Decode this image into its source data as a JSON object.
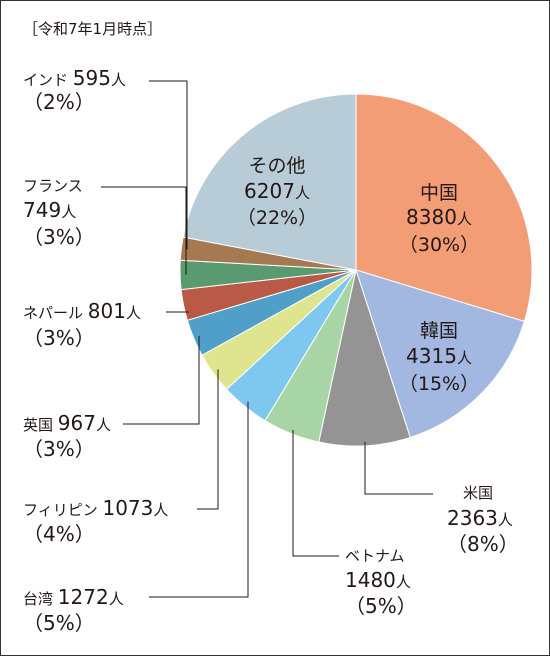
{
  "chart_data": {
    "type": "pie",
    "note": "［令和7年1月時点］",
    "unit": "人",
    "slices": [
      {
        "name": "中国",
        "value": 8380,
        "percent_label": "（30%）",
        "color": "#f29d76"
      },
      {
        "name": "韓国",
        "value": 4315,
        "percent_label": "（15%）",
        "color": "#a2b8e0"
      },
      {
        "name": "米国",
        "value": 2363,
        "percent_label": "（8%）",
        "color": "#949494"
      },
      {
        "name": "ベトナム",
        "value": 1480,
        "percent_label": "（5%）",
        "color": "#a8d5a6"
      },
      {
        "name": "台湾",
        "value": 1272,
        "percent_label": "（5%）",
        "color": "#7ec8f0"
      },
      {
        "name": "フィリピン",
        "value": 1073,
        "percent_label": "（4%）",
        "color": "#dfe58e"
      },
      {
        "name": "英国",
        "value": 967,
        "percent_label": "（3%）",
        "color": "#4f9fc8"
      },
      {
        "name": "ネパール",
        "value": 801,
        "percent_label": "（3%）",
        "color": "#b85a46"
      },
      {
        "name": "フランス",
        "value": 749,
        "percent_label": "（3%）",
        "color": "#5a9a70"
      },
      {
        "name": "インド",
        "value": 595,
        "percent_label": "（2%）",
        "color": "#a57a52"
      },
      {
        "name": "その他",
        "value": 6207,
        "percent_label": "（22%）",
        "color": "#b8ccd8"
      }
    ]
  }
}
